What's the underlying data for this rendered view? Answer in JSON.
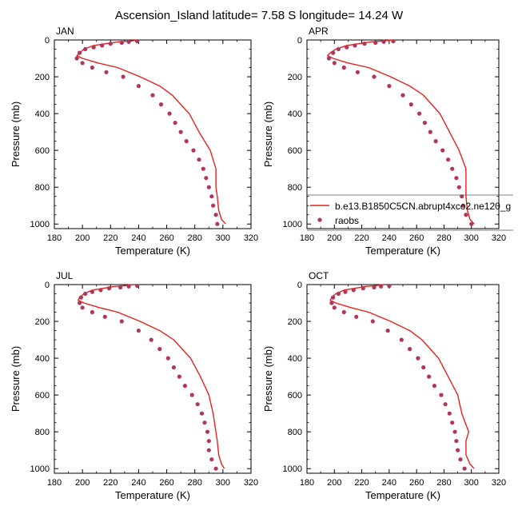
{
  "figure_title": "Ascension_Island  latitude= 7.58 S longitude= 14.24 W",
  "legend": {
    "model_label": "b.e13.B1850C5CN.abrupt4xco2.ne120_g",
    "obs_label": "raobs"
  },
  "colors": {
    "model_line": "#e8201c",
    "obs_marker": "#b0365a"
  },
  "chart_data": [
    {
      "type": "line",
      "panel_label": "JAN",
      "xlabel": "Temperature (K)",
      "ylabel": "Pressure (mb)",
      "xlim": [
        180,
        320
      ],
      "ylim": [
        0,
        1025
      ],
      "y_inverted": true,
      "x_ticks": [
        180,
        200,
        220,
        240,
        260,
        280,
        300,
        320
      ],
      "y_ticks": [
        0,
        200,
        400,
        600,
        800,
        1000
      ],
      "series": [
        {
          "name": "b.e13.B1850C5CN.abrupt4xco2.ne120_g",
          "style": "line",
          "x": [
            240,
            235,
            226,
            217,
            208,
            201,
            198,
            196,
            200,
            211,
            225,
            241,
            255,
            264,
            270,
            276,
            283,
            291,
            295,
            295,
            296,
            297,
            299,
            302
          ],
          "y": [
            0,
            5,
            10,
            20,
            30,
            50,
            70,
            85,
            100,
            125,
            150,
            200,
            250,
            300,
            350,
            400,
            500,
            600,
            700,
            800,
            850,
            925,
            975,
            1000
          ]
        },
        {
          "name": "raobs",
          "style": "markers",
          "x": [
            239,
            233,
            228,
            220,
            214,
            208,
            202,
            198,
            196,
            200,
            207,
            217,
            229,
            240,
            250,
            256,
            262,
            266,
            270,
            274,
            279,
            283,
            286,
            288,
            290,
            292,
            293,
            295,
            296
          ],
          "y": [
            7,
            10,
            15,
            20,
            30,
            40,
            50,
            70,
            100,
            125,
            150,
            175,
            200,
            250,
            300,
            350,
            400,
            450,
            500,
            550,
            600,
            650,
            700,
            750,
            800,
            850,
            900,
            950,
            1000
          ]
        }
      ]
    },
    {
      "type": "line",
      "panel_label": "APR",
      "xlabel": "Temperature (K)",
      "ylabel": "Pressure (mb)",
      "xlim": [
        180,
        320
      ],
      "ylim": [
        0,
        1025
      ],
      "y_inverted": true,
      "x_ticks": [
        180,
        200,
        220,
        240,
        260,
        280,
        300,
        320
      ],
      "y_ticks": [
        0,
        200,
        400,
        600,
        800,
        1000
      ],
      "series": [
        {
          "name": "b.e13.B1850C5CN.abrupt4xco2.ne120_g",
          "style": "line",
          "x": [
            242,
            236,
            227,
            218,
            209,
            201,
            197,
            195,
            199,
            210,
            225,
            241,
            255,
            265,
            271,
            277,
            284,
            291,
            296,
            296,
            296,
            297,
            299,
            302
          ],
          "y": [
            0,
            5,
            10,
            20,
            30,
            50,
            70,
            85,
            100,
            125,
            150,
            200,
            250,
            300,
            350,
            400,
            500,
            600,
            700,
            800,
            850,
            925,
            975,
            1000
          ]
        },
        {
          "name": "raobs",
          "style": "markers",
          "x": [
            243,
            236,
            230,
            222,
            215,
            209,
            203,
            199,
            196,
            200,
            207,
            217,
            229,
            240,
            250,
            256,
            262,
            266,
            270,
            274,
            279,
            283,
            286,
            289,
            291,
            293,
            294,
            296,
            300
          ],
          "y": [
            7,
            10,
            15,
            20,
            30,
            40,
            50,
            70,
            100,
            125,
            150,
            175,
            200,
            250,
            300,
            350,
            400,
            450,
            500,
            550,
            600,
            650,
            700,
            750,
            800,
            850,
            900,
            950,
            1000
          ]
        }
      ]
    },
    {
      "type": "line",
      "panel_label": "JUL",
      "xlabel": "Temperature (K)",
      "ylabel": "Pressure (mb)",
      "xlim": [
        180,
        320
      ],
      "ylim": [
        0,
        1025
      ],
      "y_inverted": true,
      "x_ticks": [
        180,
        200,
        220,
        240,
        260,
        280,
        300,
        320
      ],
      "y_ticks": [
        0,
        200,
        400,
        600,
        800,
        1000
      ],
      "series": [
        {
          "name": "b.e13.B1850C5CN.abrupt4xco2.ne120_g",
          "style": "line",
          "x": [
            236,
            231,
            223,
            215,
            207,
            201,
            198,
            197,
            201,
            212,
            225,
            241,
            255,
            265,
            271,
            277,
            284,
            290,
            293,
            295,
            296,
            297,
            299,
            301
          ],
          "y": [
            0,
            5,
            10,
            20,
            30,
            50,
            70,
            85,
            100,
            125,
            150,
            200,
            250,
            300,
            350,
            400,
            500,
            600,
            700,
            800,
            850,
            925,
            975,
            1000
          ]
        },
        {
          "name": "raobs",
          "style": "markers",
          "x": [
            239,
            233,
            227,
            219,
            213,
            207,
            202,
            199,
            198,
            200,
            207,
            216,
            228,
            240,
            249,
            255,
            261,
            265,
            269,
            273,
            278,
            282,
            285,
            287,
            289,
            290,
            290,
            292,
            295
          ],
          "y": [
            7,
            10,
            15,
            20,
            30,
            40,
            50,
            70,
            100,
            125,
            150,
            175,
            200,
            250,
            300,
            350,
            400,
            450,
            500,
            550,
            600,
            650,
            700,
            750,
            800,
            850,
            900,
            950,
            1000
          ]
        }
      ]
    },
    {
      "type": "line",
      "panel_label": "OCT",
      "xlabel": "Temperature (K)",
      "ylabel": "Pressure (mb)",
      "xlim": [
        180,
        320
      ],
      "ylim": [
        0,
        1025
      ],
      "y_inverted": true,
      "x_ticks": [
        180,
        200,
        220,
        240,
        260,
        280,
        300,
        320
      ],
      "y_ticks": [
        0,
        200,
        400,
        600,
        800,
        1000
      ],
      "series": [
        {
          "name": "b.e13.B1850C5CN.abrupt4xco2.ne120_g",
          "style": "line",
          "x": [
            236,
            231,
            223,
            215,
            207,
            201,
            198,
            197,
            201,
            212,
            225,
            241,
            255,
            264,
            270,
            276,
            283,
            290,
            293,
            298,
            296,
            296,
            299,
            302
          ],
          "y": [
            0,
            5,
            10,
            20,
            30,
            50,
            70,
            85,
            100,
            125,
            150,
            200,
            250,
            300,
            350,
            400,
            500,
            600,
            700,
            800,
            850,
            925,
            975,
            1000
          ]
        },
        {
          "name": "raobs",
          "style": "markers",
          "x": [
            240,
            234,
            229,
            221,
            214,
            208,
            203,
            199,
            198,
            200,
            207,
            216,
            228,
            239,
            249,
            255,
            261,
            265,
            269,
            273,
            278,
            281,
            284,
            286,
            288,
            289,
            290,
            292,
            295
          ],
          "y": [
            7,
            10,
            15,
            20,
            30,
            40,
            50,
            70,
            100,
            125,
            150,
            175,
            200,
            250,
            300,
            350,
            400,
            450,
            500,
            550,
            600,
            650,
            700,
            750,
            800,
            850,
            900,
            950,
            1000
          ]
        }
      ]
    }
  ]
}
